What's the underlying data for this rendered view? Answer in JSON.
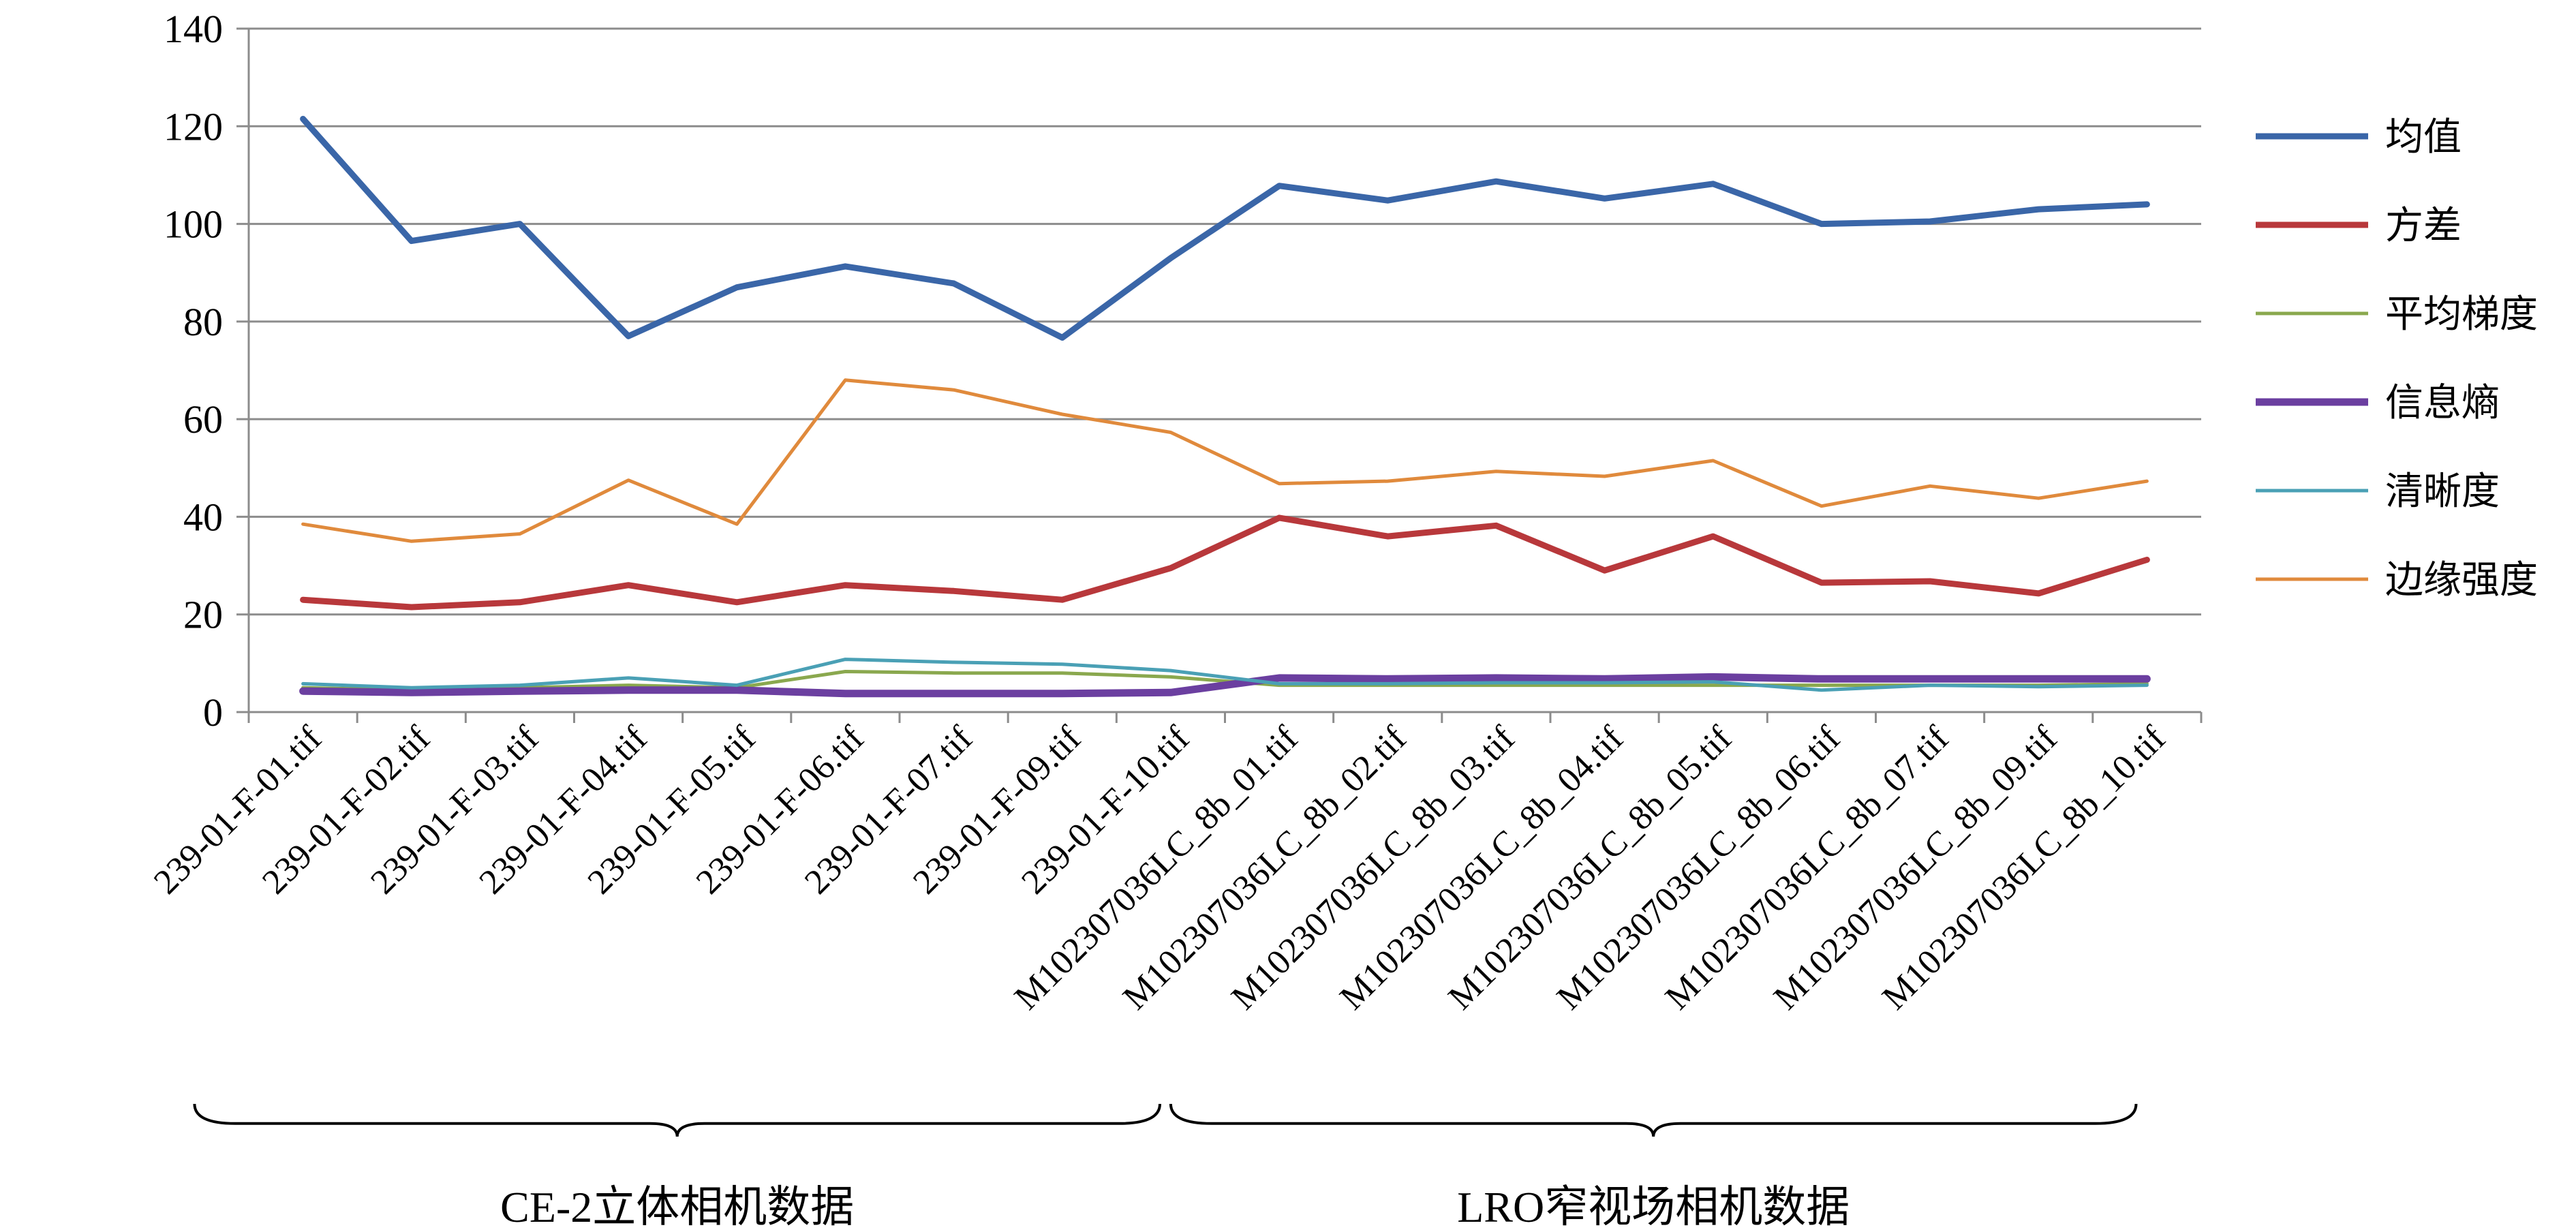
{
  "chart_data": {
    "type": "line",
    "title": "",
    "xlabel": "",
    "ylabel": "",
    "ylim": [
      0,
      140
    ],
    "yticks": [
      0,
      20,
      40,
      60,
      80,
      100,
      120,
      140
    ],
    "grid": true,
    "legend_position": "right",
    "categories": [
      "239-01-F-01.tif",
      "239-01-F-02.tif",
      "239-01-F-03.tif",
      "239-01-F-04.tif",
      "239-01-F-05.tif",
      "239-01-F-06.tif",
      "239-01-F-07.tif",
      "239-01-F-09.tif",
      "239-01-F-10.tif",
      "M102307036LC_8b_01.tif",
      "M102307036LC_8b_02.tif",
      "M102307036LC_8b_03.tif",
      "M102307036LC_8b_04.tif",
      "M102307036LC_8b_05.tif",
      "M102307036LC_8b_06.tif",
      "M102307036LC_8b_07.tif",
      "M102307036LC_8b_09.tif",
      "M102307036LC_8b_10.tif"
    ],
    "series": [
      {
        "name": "均值",
        "color": "#3a66a8",
        "width": 9,
        "values": [
          121.5,
          96.5,
          100,
          77,
          87,
          91.3,
          87.8,
          76.7,
          93,
          107.8,
          104.8,
          108.7,
          105.2,
          108.2,
          100,
          100.5,
          103,
          104
        ]
      },
      {
        "name": "方差",
        "color": "#b8383b",
        "width": 9,
        "values": [
          23,
          21.5,
          22.5,
          26,
          22.5,
          26,
          24.8,
          23,
          29.5,
          39.8,
          36,
          38.2,
          29,
          36,
          26.5,
          26.8,
          24.3,
          31.2
        ]
      },
      {
        "name": "平均梯度",
        "color": "#8aa84e",
        "width": 5,
        "values": [
          5,
          4.5,
          5,
          5.5,
          5,
          8.3,
          8,
          8,
          7.2,
          5.5,
          5.5,
          5.5,
          5.5,
          5.5,
          5.5,
          5.5,
          5.5,
          5.8
        ]
      },
      {
        "name": "信息熵",
        "color": "#6b3fa0",
        "width": 11,
        "values": [
          4.3,
          4,
          4.3,
          4.5,
          4.5,
          3.8,
          3.8,
          3.8,
          4,
          7,
          6.8,
          7,
          6.8,
          7.2,
          6.8,
          6.8,
          6.8,
          6.8
        ]
      },
      {
        "name": "清晰度",
        "color": "#4aa0b5",
        "width": 5,
        "values": [
          5.8,
          5,
          5.5,
          7,
          5.5,
          10.8,
          10.2,
          9.8,
          8.5,
          5.8,
          5.8,
          6,
          6,
          6.2,
          4.5,
          5.5,
          5.2,
          5.5
        ]
      },
      {
        "name": "边缘强度",
        "color": "#e08a3c",
        "width": 5,
        "values": [
          38.5,
          35,
          36.5,
          47.5,
          38.5,
          68,
          66,
          61,
          57.3,
          46.8,
          47.3,
          49.3,
          48.3,
          51.5,
          42.2,
          46.3,
          43.8,
          47.3
        ]
      }
    ],
    "groups": [
      {
        "label": "CE-2立体相机数据",
        "from": 0,
        "to": 8
      },
      {
        "label": "LRO窄视场相机数据",
        "from": 9,
        "to": 17
      }
    ]
  }
}
